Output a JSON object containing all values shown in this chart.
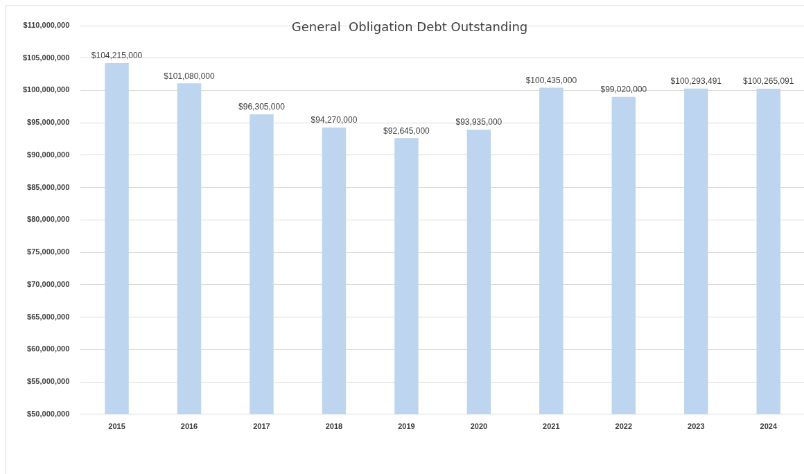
{
  "chart_data": {
    "type": "bar",
    "title": "General  Obligation Debt Outstanding",
    "categories": [
      "2015",
      "2016",
      "2017",
      "2018",
      "2019",
      "2020",
      "2021",
      "2022",
      "2023",
      "2024"
    ],
    "values": [
      104215000,
      101080000,
      96305000,
      94270000,
      92645000,
      93935000,
      100435000,
      99020000,
      100293491,
      100265091
    ],
    "color": "#bdd5ee",
    "ylim": [
      50000000,
      110000000
    ],
    "yticks": [
      {
        "value": 50000000,
        "label": "$50,000,000"
      },
      {
        "value": 55000000,
        "label": "$55,000,000"
      },
      {
        "value": 60000000,
        "label": "$60,000,000"
      },
      {
        "value": 65000000,
        "label": "$65,000,000"
      },
      {
        "value": 70000000,
        "label": "$70,000,000"
      },
      {
        "value": 75000000,
        "label": "$75,000,000"
      },
      {
        "value": 80000000,
        "label": "$80,000,000"
      },
      {
        "value": 85000000,
        "label": "$85,000,000"
      },
      {
        "value": 90000000,
        "label": "$90,000,000"
      },
      {
        "value": 95000000,
        "label": "$95,000,000"
      },
      {
        "value": 100000000,
        "label": "$100,000,000"
      },
      {
        "value": 105000000,
        "label": "$105,000,000"
      },
      {
        "value": 110000000,
        "label": "$110,000,000"
      }
    ],
    "value_labels": [
      "$104,215,000",
      "$101,080,000",
      "$96,305,000",
      "$94,270,000",
      "$92,645,000",
      "$93,935,000",
      "$100,435,000",
      "$99,020,000",
      "$100,293,491",
      "$100,265,091"
    ],
    "grid": "y"
  }
}
